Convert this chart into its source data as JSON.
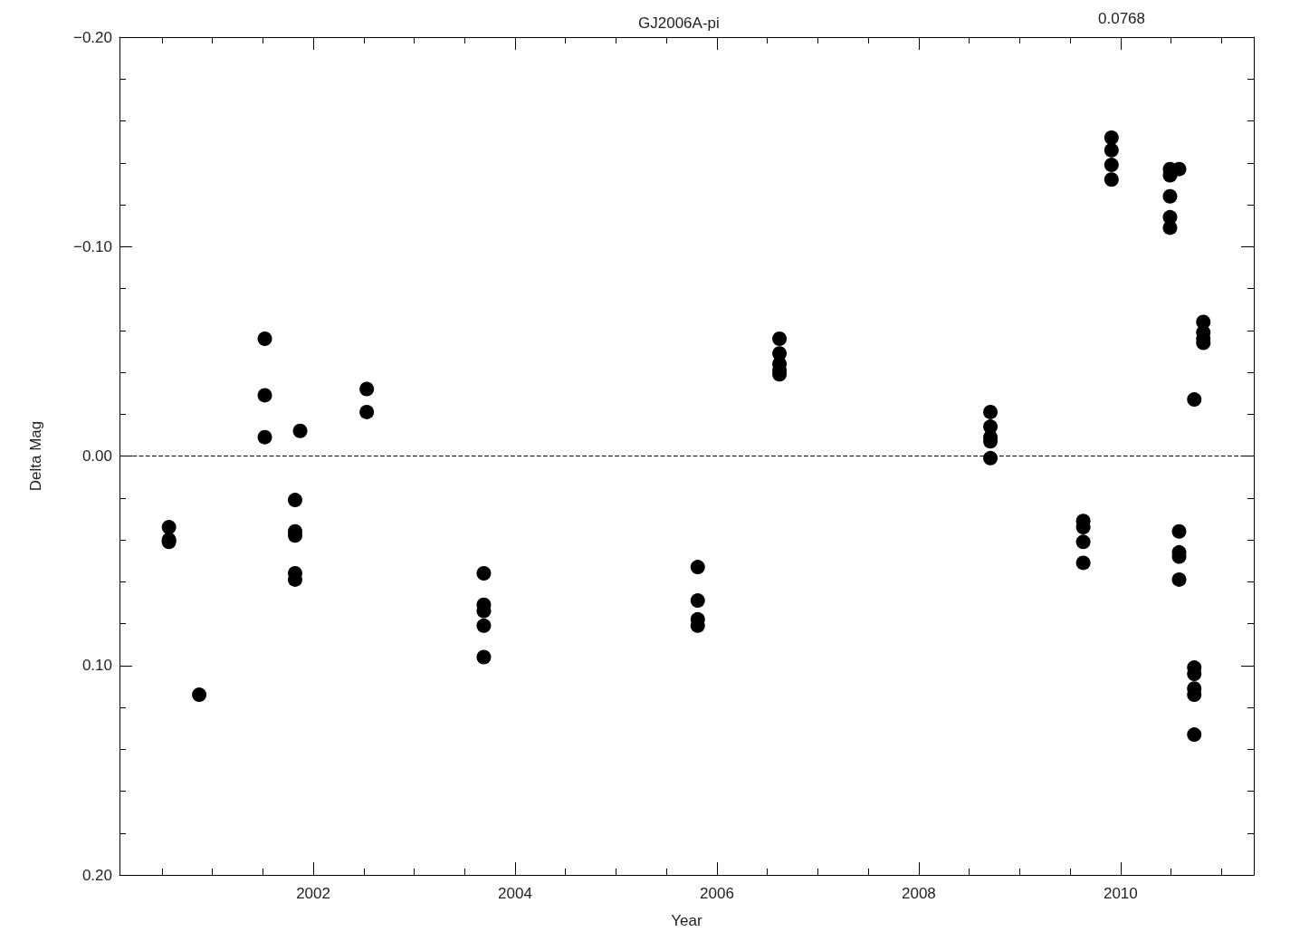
{
  "chart_data": {
    "type": "scatter",
    "title": "GJ2006A-pi",
    "annotations": [
      "0.0768"
    ],
    "xlabel": "Year",
    "ylabel": "Delta Mag",
    "xlim": [
      2000.08,
      2011.32
    ],
    "xticks": [
      2002,
      2004,
      2006,
      2008,
      2010
    ],
    "ylim": [
      0.2,
      -0.2
    ],
    "yticks": [
      {
        "value": -0.2,
        "label": "−0.20"
      },
      {
        "value": -0.1,
        "label": "−0.10"
      },
      {
        "value": 0,
        "label": "0.00"
      },
      {
        "value": 0.1,
        "label": "0.10"
      },
      {
        "value": 0.2,
        "label": "0.20"
      }
    ],
    "grid": false,
    "marker": "circle",
    "ref_lines": [
      {
        "axis": "y",
        "value": 0,
        "line_style": "dashed",
        "color": "#000000"
      }
    ],
    "series": [
      {
        "color": "#000000",
        "x": [
          2000.57,
          2000.57,
          2000.57,
          2000.87,
          2001.52,
          2001.52,
          2001.52,
          2001.87,
          2001.82,
          2001.82,
          2001.82,
          2001.82,
          2001.82,
          2002.53,
          2002.53,
          2003.69,
          2003.69,
          2003.69,
          2003.69,
          2003.69,
          2005.81,
          2005.81,
          2005.81,
          2005.81,
          2006.62,
          2006.62,
          2006.62,
          2006.62,
          2006.62,
          2008.71,
          2008.71,
          2008.71,
          2008.71,
          2008.71,
          2009.63,
          2009.63,
          2009.63,
          2009.63,
          2009.91,
          2009.91,
          2009.91,
          2009.91,
          2010.49,
          2010.49,
          2010.49,
          2010.49,
          2010.49,
          2010.58,
          2010.58,
          2010.58,
          2010.58,
          2010.58,
          2010.73,
          2010.73,
          2010.73,
          2010.73,
          2010.73,
          2010.73,
          2010.82,
          2010.82,
          2010.82,
          2010.82
        ],
        "values": [
          0.034,
          0.04,
          0.041,
          0.114,
          -0.056,
          -0.029,
          -0.009,
          -0.012,
          0.021,
          0.036,
          0.038,
          0.056,
          0.059,
          -0.032,
          -0.021,
          0.056,
          0.071,
          0.074,
          0.081,
          0.096,
          0.053,
          0.069,
          0.078,
          0.081,
          -0.056,
          -0.049,
          -0.044,
          -0.041,
          -0.039,
          -0.021,
          -0.014,
          -0.009,
          -0.007,
          0.001,
          0.031,
          0.034,
          0.041,
          0.051,
          -0.152,
          -0.146,
          -0.139,
          -0.132,
          -0.137,
          -0.134,
          -0.124,
          -0.114,
          -0.109,
          -0.137,
          0.036,
          0.046,
          0.048,
          0.059,
          -0.027,
          0.101,
          0.104,
          0.111,
          0.114,
          0.133,
          -0.064,
          -0.059,
          -0.056,
          -0.054
        ]
      }
    ]
  }
}
